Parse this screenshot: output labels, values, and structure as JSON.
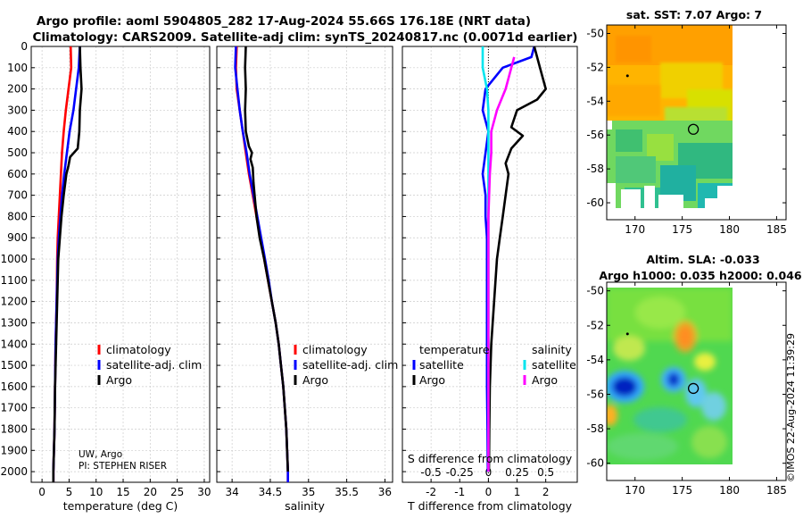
{
  "header": {
    "title_line1": "Argo profile: aoml 5904805_282 17-Aug-2024 55.66S 176.18E (NRT data)",
    "title_line2": "Climatology: CARS2009. Satellite-adj clim: synTS_20240817.nc (0.0071d earlier)"
  },
  "credit": {
    "line1": "UW, Argo",
    "line2": "PI: STEPHEN RISER"
  },
  "watermark": "©IMOS 22-Aug-2024 11:39:29",
  "colors": {
    "clim": "#ff0000",
    "sat": "#0000ff",
    "argo": "#000000",
    "sat_sal": "#00e5ee",
    "argo_sal": "#ff00ff"
  },
  "chart_data": [
    {
      "id": "temp",
      "type": "line",
      "xlabel": "temperature (deg C)",
      "ylabel": "depth",
      "xlim": [
        -2,
        31
      ],
      "ylim": [
        2050,
        0
      ],
      "xticks": [
        0,
        5,
        10,
        15,
        20,
        25,
        30
      ],
      "yticks": [
        0,
        100,
        200,
        300,
        400,
        500,
        600,
        700,
        800,
        900,
        1000,
        1100,
        1200,
        1300,
        1400,
        1500,
        1600,
        1700,
        1800,
        1900,
        2000
      ],
      "grid": true,
      "legend": {
        "position": "bottom-right",
        "entries": [
          "climatology",
          "satellite-adj. clim",
          "Argo"
        ]
      },
      "series": [
        {
          "name": "climatology",
          "color": "#ff0000",
          "points": [
            [
              5.3,
              0
            ],
            [
              5.4,
              100
            ],
            [
              4.9,
              200
            ],
            [
              4.4,
              300
            ],
            [
              4.0,
              400
            ],
            [
              3.7,
              500
            ],
            [
              3.5,
              600
            ],
            [
              3.3,
              700
            ],
            [
              3.1,
              800
            ],
            [
              2.9,
              900
            ],
            [
              2.8,
              1000
            ],
            [
              2.7,
              1200
            ],
            [
              2.5,
              1400
            ],
            [
              2.4,
              1600
            ],
            [
              2.3,
              1800
            ],
            [
              2.1,
              2000
            ],
            [
              2.1,
              2050
            ]
          ]
        },
        {
          "name": "satellite-adj. clim",
          "color": "#0000ff",
          "points": [
            [
              7.0,
              0
            ],
            [
              6.8,
              100
            ],
            [
              6.3,
              200
            ],
            [
              5.8,
              300
            ],
            [
              5.1,
              400
            ],
            [
              4.6,
              500
            ],
            [
              4.1,
              600
            ],
            [
              3.7,
              700
            ],
            [
              3.4,
              800
            ],
            [
              3.1,
              900
            ],
            [
              2.9,
              1000
            ],
            [
              2.7,
              1200
            ],
            [
              2.5,
              1400
            ],
            [
              2.4,
              1600
            ],
            [
              2.3,
              1800
            ],
            [
              2.1,
              2000
            ],
            [
              2.1,
              2050
            ]
          ]
        },
        {
          "name": "Argo",
          "color": "#000000",
          "points": [
            [
              7.0,
              0
            ],
            [
              7.1,
              100
            ],
            [
              7.3,
              200
            ],
            [
              7.0,
              300
            ],
            [
              6.9,
              400
            ],
            [
              6.6,
              480
            ],
            [
              5.2,
              520
            ],
            [
              4.9,
              560
            ],
            [
              4.5,
              600
            ],
            [
              4.0,
              700
            ],
            [
              3.6,
              800
            ],
            [
              3.3,
              900
            ],
            [
              3.0,
              1000
            ],
            [
              2.8,
              1200
            ],
            [
              2.6,
              1400
            ],
            [
              2.4,
              1600
            ],
            [
              2.3,
              1800
            ],
            [
              2.1,
              2000
            ],
            [
              2.1,
              2050
            ]
          ]
        }
      ]
    },
    {
      "id": "sal",
      "type": "line",
      "xlabel": "salinity",
      "ylabel": "",
      "xlim": [
        33.8,
        36.1
      ],
      "ylim": [
        2050,
        0
      ],
      "xticks": [
        34,
        34.5,
        35,
        35.5,
        36
      ],
      "grid": true,
      "legend": {
        "position": "bottom-right",
        "entries": [
          "climatology",
          "satellite-adj. clim",
          "Argo"
        ]
      },
      "series": [
        {
          "name": "climatology",
          "color": "#ff0000",
          "points": [
            [
              34.06,
              0
            ],
            [
              34.05,
              100
            ],
            [
              34.06,
              200
            ],
            [
              34.1,
              300
            ],
            [
              34.14,
              400
            ],
            [
              34.18,
              500
            ],
            [
              34.22,
              600
            ],
            [
              34.27,
              700
            ],
            [
              34.32,
              800
            ],
            [
              34.37,
              900
            ],
            [
              34.42,
              1000
            ],
            [
              34.47,
              1100
            ],
            [
              34.52,
              1200
            ],
            [
              34.57,
              1300
            ],
            [
              34.61,
              1400
            ],
            [
              34.64,
              1500
            ],
            [
              34.67,
              1600
            ],
            [
              34.69,
              1700
            ],
            [
              34.71,
              1800
            ],
            [
              34.72,
              1900
            ],
            [
              34.73,
              2000
            ],
            [
              34.73,
              2050
            ]
          ]
        },
        {
          "name": "satellite-adj. clim",
          "color": "#0000ff",
          "points": [
            [
              34.05,
              0
            ],
            [
              34.04,
              100
            ],
            [
              34.07,
              200
            ],
            [
              34.1,
              300
            ],
            [
              34.14,
              400
            ],
            [
              34.19,
              500
            ],
            [
              34.23,
              600
            ],
            [
              34.28,
              700
            ],
            [
              34.33,
              800
            ],
            [
              34.38,
              900
            ],
            [
              34.43,
              1000
            ],
            [
              34.48,
              1100
            ],
            [
              34.52,
              1200
            ],
            [
              34.57,
              1300
            ],
            [
              34.61,
              1400
            ],
            [
              34.64,
              1500
            ],
            [
              34.67,
              1600
            ],
            [
              34.69,
              1700
            ],
            [
              34.71,
              1800
            ],
            [
              34.72,
              1900
            ],
            [
              34.73,
              2000
            ],
            [
              34.73,
              2050
            ]
          ]
        },
        {
          "name": "Argo",
          "color": "#000000",
          "points": [
            [
              34.18,
              0
            ],
            [
              34.17,
              100
            ],
            [
              34.18,
              200
            ],
            [
              34.17,
              300
            ],
            [
              34.18,
              400
            ],
            [
              34.22,
              470
            ],
            [
              34.26,
              500
            ],
            [
              34.24,
              530
            ],
            [
              34.27,
              570
            ],
            [
              34.28,
              640
            ],
            [
              34.32,
              800
            ],
            [
              34.36,
              900
            ],
            [
              34.42,
              1000
            ],
            [
              34.47,
              1100
            ],
            [
              34.52,
              1200
            ],
            [
              34.57,
              1300
            ],
            [
              34.61,
              1400
            ],
            [
              34.64,
              1500
            ],
            [
              34.67,
              1600
            ],
            [
              34.69,
              1700
            ],
            [
              34.71,
              1800
            ],
            [
              34.72,
              1900
            ],
            [
              34.73,
              2000
            ]
          ]
        }
      ]
    },
    {
      "id": "diff",
      "type": "line",
      "xlabel": "T difference from climatology",
      "xlabel_top": "S difference from climatology",
      "ylabel": "",
      "xlim": [
        -3,
        3.1
      ],
      "ylim": [
        2050,
        0
      ],
      "xticks": [
        -2,
        -1,
        0,
        1,
        2
      ],
      "top_ticks": [
        "-0.5",
        "-0.25",
        "0",
        "0.25",
        "0.5"
      ],
      "top_tick_x": [
        -2,
        -1,
        0,
        1,
        2
      ],
      "grid": true,
      "legend_temperature": {
        "title": "temperature",
        "entries": [
          "satellite",
          "Argo"
        ]
      },
      "legend_salinity": {
        "title": "salinity",
        "entries": [
          "satellite",
          "Argo"
        ]
      },
      "series": [
        {
          "name": "T satellite",
          "color": "#0000ff",
          "points": [
            [
              1.6,
              0
            ],
            [
              1.5,
              50
            ],
            [
              0.5,
              100
            ],
            [
              -0.1,
              200
            ],
            [
              -0.2,
              300
            ],
            [
              0.0,
              400
            ],
            [
              -0.1,
              500
            ],
            [
              -0.2,
              600
            ],
            [
              -0.1,
              700
            ],
            [
              -0.1,
              800
            ],
            [
              -0.05,
              900
            ],
            [
              -0.05,
              1000
            ],
            [
              -0.05,
              1200
            ],
            [
              -0.05,
              1400
            ],
            [
              -0.05,
              1600
            ],
            [
              -0.03,
              1800
            ],
            [
              -0.02,
              2000
            ]
          ]
        },
        {
          "name": "T Argo",
          "color": "#000000",
          "points": [
            [
              1.6,
              0
            ],
            [
              1.8,
              100
            ],
            [
              2.0,
              200
            ],
            [
              1.7,
              250
            ],
            [
              1.0,
              300
            ],
            [
              0.8,
              380
            ],
            [
              1.2,
              420
            ],
            [
              0.8,
              480
            ],
            [
              0.6,
              550
            ],
            [
              0.7,
              600
            ],
            [
              0.6,
              700
            ],
            [
              0.5,
              800
            ],
            [
              0.4,
              900
            ],
            [
              0.3,
              1000
            ],
            [
              0.2,
              1200
            ],
            [
              0.1,
              1400
            ],
            [
              0.05,
              1600
            ],
            [
              0.03,
              1800
            ],
            [
              0.02,
              2000
            ]
          ]
        },
        {
          "name": "S satellite",
          "color": "#00e5ee",
          "points": [
            [
              -0.2,
              0
            ],
            [
              -0.2,
              100
            ],
            [
              -0.05,
              200
            ],
            [
              0.0,
              300
            ],
            [
              0.0,
              500
            ],
            [
              0.0,
              800
            ],
            [
              0.0,
              1200
            ],
            [
              0.0,
              1600
            ],
            [
              0.0,
              2000
            ]
          ]
        },
        {
          "name": "S Argo",
          "color": "#ff00ff",
          "points": [
            [
              0.9,
              50
            ],
            [
              0.8,
              100
            ],
            [
              0.6,
              200
            ],
            [
              0.3,
              300
            ],
            [
              0.1,
              400
            ],
            [
              0.1,
              500
            ],
            [
              0.05,
              600
            ],
            [
              0.0,
              800
            ],
            [
              0.0,
              1200
            ],
            [
              0.0,
              1600
            ],
            [
              0.0,
              2000
            ]
          ]
        }
      ]
    },
    {
      "id": "sst_map",
      "type": "heatmap",
      "title": "sat. SST: 7.07 Argo: 7",
      "xlim": [
        167,
        186
      ],
      "ylim": [
        -61,
        -49.5
      ],
      "xticks": [
        170,
        175,
        180,
        185
      ],
      "yticks": [
        -50,
        -52,
        -54,
        -56,
        -58,
        -60
      ],
      "float_position": [
        176.18,
        -55.66
      ],
      "previous_position": [
        169.2,
        -52.5
      ]
    },
    {
      "id": "sla_map",
      "type": "heatmap",
      "title_line1": "Altim. SLA: -0.033",
      "title_line2": "Argo h1000: 0.035 h2000: 0.046",
      "xlim": [
        167,
        186
      ],
      "ylim": [
        -61,
        -49.5
      ],
      "xticks": [
        170,
        175,
        180,
        185
      ],
      "yticks": [
        -50,
        -52,
        -54,
        -56,
        -58,
        -60
      ],
      "float_position": [
        176.18,
        -55.66
      ],
      "previous_position": [
        169.2,
        -52.5
      ]
    }
  ]
}
